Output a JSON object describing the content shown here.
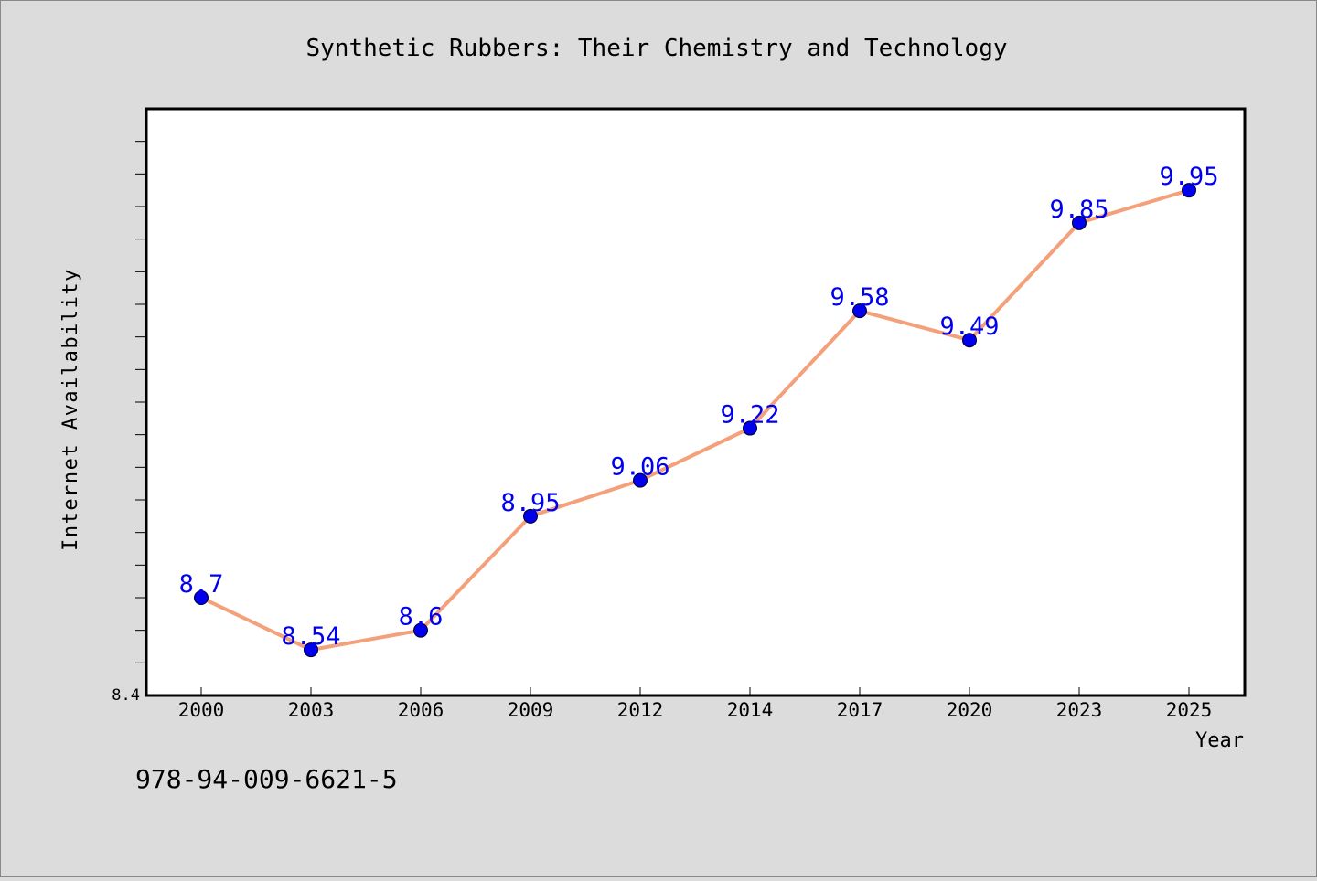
{
  "chart_data": {
    "type": "line",
    "title": "Synthetic Rubbers: Their Chemistry and Technology",
    "xlabel": "Year",
    "ylabel": "Internet Availability",
    "categories": [
      "2000",
      "2003",
      "2006",
      "2009",
      "2012",
      "2014",
      "2017",
      "2020",
      "2023",
      "2025"
    ],
    "series": [
      {
        "values": [
          8.7,
          8.54,
          8.6,
          8.95,
          9.06,
          9.22,
          9.58,
          9.49,
          9.85,
          9.95
        ]
      }
    ],
    "data_labels": [
      "8.7",
      "8.54",
      "8.6",
      "8.95",
      "9.06",
      "9.22",
      "9.58",
      "9.49",
      "9.85",
      "9.95"
    ],
    "y_tick_label": "8.4",
    "ylim": [
      8.4,
      10.2
    ],
    "y_minor_tick_step": 0.1,
    "grid": false,
    "line_color": "#f4a07a",
    "marker_color": "#0000ee",
    "data_label_color": "#0000ee",
    "annotation": "978-94-009-6621-5"
  }
}
